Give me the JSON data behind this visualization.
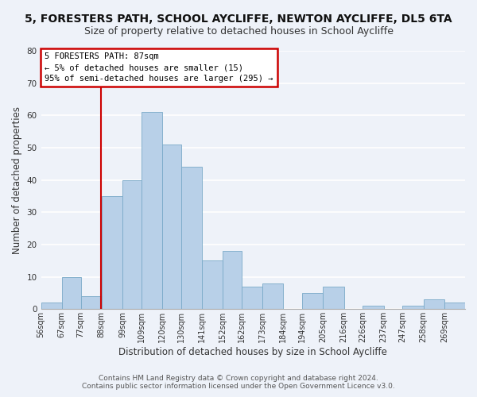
{
  "title": "5, FORESTERS PATH, SCHOOL AYCLIFFE, NEWTON AYCLIFFE, DL5 6TA",
  "subtitle": "Size of property relative to detached houses in School Aycliffe",
  "xlabel": "Distribution of detached houses by size in School Aycliffe",
  "ylabel": "Number of detached properties",
  "bar_color": "#b8d0e8",
  "bar_edge_color": "#7aaac8",
  "bin_edges": [
    56,
    67,
    77,
    88,
    99,
    109,
    120,
    130,
    141,
    152,
    162,
    173,
    184,
    194,
    205,
    216,
    226,
    237,
    247,
    258,
    269,
    280
  ],
  "bar_heights": [
    2,
    10,
    4,
    35,
    40,
    61,
    51,
    44,
    15,
    18,
    7,
    8,
    0,
    5,
    7,
    0,
    1,
    0,
    1,
    3,
    2
  ],
  "tick_labels": [
    "56sqm",
    "67sqm",
    "77sqm",
    "88sqm",
    "99sqm",
    "109sqm",
    "120sqm",
    "130sqm",
    "141sqm",
    "152sqm",
    "162sqm",
    "173sqm",
    "184sqm",
    "194sqm",
    "205sqm",
    "216sqm",
    "226sqm",
    "237sqm",
    "247sqm",
    "258sqm",
    "269sqm"
  ],
  "vline_x": 87.5,
  "vline_color": "#cc0000",
  "annotation_title": "5 FORESTERS PATH: 87sqm",
  "annotation_line1": "← 5% of detached houses are smaller (15)",
  "annotation_line2": "95% of semi-detached houses are larger (295) →",
  "annotation_box_color": "white",
  "annotation_box_edge": "#cc0000",
  "ylim": [
    0,
    80
  ],
  "yticks": [
    0,
    10,
    20,
    30,
    40,
    50,
    60,
    70,
    80
  ],
  "footer1": "Contains HM Land Registry data © Crown copyright and database right 2024.",
  "footer2": "Contains public sector information licensed under the Open Government Licence v3.0.",
  "background_color": "#eef2f9",
  "grid_color": "white",
  "title_fontsize": 10,
  "subtitle_fontsize": 9,
  "axis_label_fontsize": 8.5,
  "tick_fontsize": 7,
  "footer_fontsize": 6.5
}
